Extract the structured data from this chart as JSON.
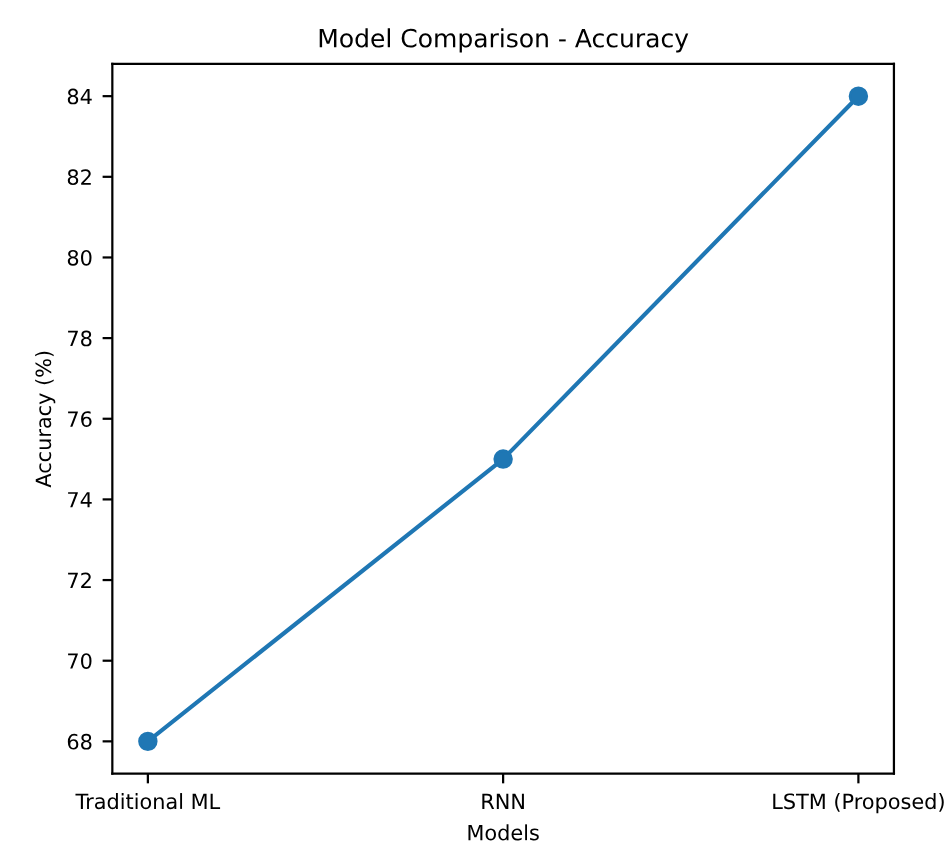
{
  "chart_data": {
    "type": "line",
    "title": "Model Comparison - Accuracy",
    "xlabel": "Models",
    "ylabel": "Accuracy (%)",
    "categories": [
      "Traditional ML",
      "RNN",
      "LSTM (Proposed)"
    ],
    "series": [
      {
        "color": "#1f77b4",
        "values": [
          68,
          75,
          84
        ]
      }
    ],
    "ylim": [
      67.2,
      84.8
    ],
    "yticks": [
      68,
      70,
      72,
      74,
      76,
      78,
      80,
      82,
      84
    ],
    "marker": "circle",
    "line_style": "solid",
    "grid": false,
    "legend": false
  }
}
